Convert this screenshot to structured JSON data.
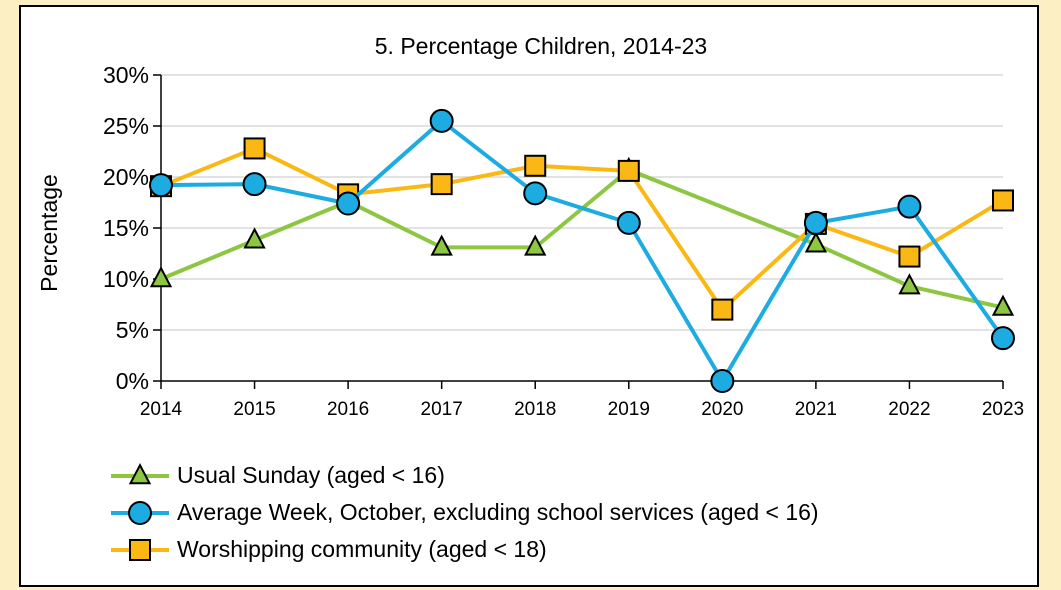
{
  "chart_data": {
    "type": "line",
    "title": "5. Percentage Children, 2014-23",
    "xlabel": "",
    "ylabel": "Percentage",
    "x": [
      "2014",
      "2015",
      "2016",
      "2017",
      "2018",
      "2019",
      "2020",
      "2021",
      "2022",
      "2023"
    ],
    "ylim": [
      0,
      30
    ],
    "yticks": [
      0,
      5,
      10,
      15,
      20,
      25,
      30
    ],
    "ytick_labels": [
      "0%",
      "5%",
      "10%",
      "15%",
      "20%",
      "25%",
      "30%"
    ],
    "grid": "horizontal",
    "legend_position": "bottom",
    "series": [
      {
        "name": "Usual Sunday (aged < 16)",
        "marker": "triangle",
        "color": "#8dc641",
        "values": [
          10,
          13.8,
          17.6,
          13.1,
          13.1,
          20.7,
          null,
          13.4,
          9.3,
          7.2
        ]
      },
      {
        "name": "Average Week, October, excluding school services (aged < 16)",
        "marker": "circle",
        "color": "#1cace2",
        "values": [
          19.2,
          19.3,
          17.4,
          25.5,
          18.4,
          15.5,
          0,
          15.5,
          17.1,
          4.2
        ]
      },
      {
        "name": "Worshipping community (aged < 18)",
        "marker": "square",
        "color": "#fbb814",
        "values": [
          19.1,
          22.8,
          18.3,
          19.3,
          21.1,
          20.6,
          7.0,
          15.4,
          12.2,
          17.7
        ]
      }
    ]
  }
}
